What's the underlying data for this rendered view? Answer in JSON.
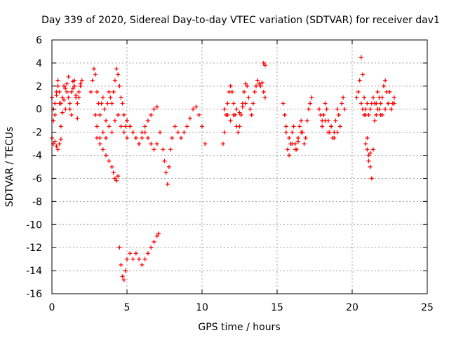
{
  "chart_data": {
    "type": "scatter",
    "title": "Day 339 of 2020, Sidereal Day-to-day VTEC variation (SDTVAR) for receiver dav1",
    "xlabel": "GPS time / hours",
    "ylabel": "SDTVAR / TECUs",
    "xlim": [
      0,
      25
    ],
    "ylim": [
      -16,
      6
    ],
    "xticks": [
      "0",
      "5",
      "10",
      "15",
      "20",
      "25"
    ],
    "yticks": [
      "6",
      "4",
      "2",
      "0",
      "-2",
      "-4",
      "-6",
      "-8",
      "-10",
      "-12",
      "-14",
      "-16"
    ],
    "grid": true,
    "marker": "+",
    "color": "#ff0000",
    "series": [
      {
        "name": "dav1",
        "x": [
          0.0,
          0.1,
          0.2,
          0.3,
          0.4,
          0.5,
          0.6,
          0.7,
          0.8,
          0.9,
          1.0,
          1.1,
          1.2,
          1.3,
          1.4,
          1.5,
          1.6,
          1.7,
          1.8,
          1.9,
          2.0,
          0.1,
          0.2,
          0.3,
          0.4,
          0.5,
          0.6,
          0.7,
          0.8,
          0.9,
          1.0,
          1.1,
          1.2,
          1.3,
          1.4,
          1.5,
          1.6,
          1.7,
          1.8,
          1.9,
          0.0,
          0.1,
          0.2,
          0.3,
          0.4,
          0.5,
          0.6,
          2.6,
          2.7,
          2.8,
          2.9,
          3.0,
          3.1,
          3.2,
          3.3,
          3.4,
          3.5,
          3.6,
          3.7,
          3.8,
          3.9,
          4.0,
          4.1,
          4.2,
          4.3,
          4.4,
          4.5,
          4.6,
          4.7,
          4.8,
          4.9,
          5.0,
          2.9,
          3.0,
          3.2,
          3.4,
          3.6,
          3.8,
          4.0,
          4.1,
          4.2,
          4.3,
          4.4,
          3.0,
          3.2,
          3.4,
          3.6,
          3.8,
          4.0,
          4.2,
          4.4,
          4.6,
          4.8,
          5.0,
          5.2,
          5.4,
          5.6,
          5.8,
          6.0,
          6.2,
          6.4,
          6.6,
          6.8,
          7.0,
          5.0,
          5.2,
          5.4,
          5.6,
          5.8,
          6.0,
          6.2,
          6.4,
          6.6,
          6.8,
          7.0,
          7.2,
          7.4,
          7.5,
          7.6,
          7.7,
          7.8,
          7.9,
          8.0,
          8.2,
          8.4,
          8.6,
          8.8,
          9.0,
          9.2,
          9.4,
          9.6,
          9.8,
          10.0,
          10.2,
          4.5,
          4.6,
          4.7,
          4.8,
          4.9,
          5.0,
          5.2,
          5.4,
          5.6,
          5.8,
          6.0,
          6.2,
          6.4,
          6.6,
          6.8,
          7.0,
          7.1,
          11.4,
          11.5,
          11.6,
          11.7,
          11.8,
          11.9,
          12.0,
          12.1,
          12.2,
          12.3,
          12.4,
          12.5,
          12.6,
          12.7,
          12.8,
          12.9,
          13.0,
          13.1,
          13.2,
          13.3,
          13.4,
          13.5,
          13.6,
          13.7,
          13.8,
          13.9,
          14.0,
          11.5,
          11.7,
          11.9,
          12.1,
          12.3,
          12.5,
          12.7,
          12.9,
          14.1,
          14.2,
          14.1,
          14.2,
          15.4,
          15.5,
          15.6,
          15.7,
          15.8,
          15.9,
          16.0,
          16.1,
          16.2,
          16.3,
          16.4,
          16.5,
          16.6,
          16.7,
          16.8,
          16.9,
          17.0,
          17.1,
          17.2,
          17.3,
          15.6,
          15.8,
          16.0,
          16.2,
          16.4,
          16.6,
          17.8,
          17.9,
          18.0,
          18.1,
          18.2,
          18.3,
          18.4,
          18.5,
          18.6,
          18.7,
          18.8,
          18.9,
          19.0,
          19.1,
          19.2,
          19.3,
          19.4,
          19.5,
          18.0,
          18.2,
          18.4,
          18.6,
          18.8,
          19.0,
          20.3,
          20.4,
          20.5,
          20.6,
          20.7,
          20.8,
          20.9,
          21.0,
          21.1,
          21.2,
          21.3,
          21.4,
          21.5,
          21.6,
          21.7,
          21.8,
          21.9,
          22.0,
          22.1,
          22.2,
          22.3,
          22.4,
          22.5,
          22.6,
          22.7,
          22.8,
          20.6,
          20.7,
          20.8,
          20.9,
          21.0,
          21.1,
          21.2,
          21.3,
          21.4,
          21.5,
          21.6,
          21.7,
          21.8,
          21.9,
          22.0,
          22.2,
          22.4,
          22.6,
          22.8,
          20.9,
          21.0,
          21.1,
          21.2
        ],
        "y": [
          1.0,
          0.0,
          -0.5,
          1.2,
          2.0,
          1.5,
          0.5,
          -0.3,
          0.8,
          1.8,
          2.2,
          1.0,
          0.0,
          1.5,
          2.4,
          2.0,
          1.2,
          0.5,
          1.0,
          2.0,
          2.5,
          -1.0,
          0.5,
          1.5,
          2.5,
          0.5,
          -1.5,
          1.0,
          2.0,
          0.0,
          1.5,
          2.8,
          0.5,
          -0.5,
          1.8,
          2.5,
          1.0,
          -0.8,
          1.5,
          2.2,
          -2.5,
          -3.0,
          -2.8,
          -3.2,
          -3.5,
          -3.0,
          -2.6,
          1.5,
          2.5,
          3.5,
          3.0,
          1.5,
          0.5,
          -0.5,
          0.5,
          1.0,
          0.0,
          -1.0,
          0.5,
          1.5,
          1.0,
          0.5,
          1.5,
          2.5,
          3.5,
          3.0,
          2.0,
          1.0,
          0.5,
          -0.5,
          -1.5,
          -2.5,
          -0.5,
          -1.5,
          -2.5,
          -3.5,
          -4.0,
          -4.5,
          -5.0,
          -5.5,
          -6.0,
          -6.2,
          -5.8,
          -2.5,
          -3.0,
          -2.0,
          -2.5,
          -1.5,
          -2.0,
          -1.0,
          -0.5,
          -1.5,
          -2.0,
          -1.0,
          -1.5,
          -2.0,
          -2.5,
          -3.0,
          -2.5,
          -2.0,
          -2.5,
          -3.0,
          -3.5,
          -3.0,
          -1.0,
          -1.5,
          -2.0,
          -2.5,
          -3.0,
          -2.0,
          -1.5,
          -1.0,
          -0.5,
          0.0,
          0.2,
          -2.0,
          -3.5,
          -4.5,
          -5.5,
          -6.5,
          -5.0,
          -3.5,
          -2.5,
          -1.5,
          -2.0,
          -2.5,
          -2.0,
          -1.5,
          -0.8,
          0.0,
          0.2,
          -0.5,
          -1.5,
          -3.0,
          -12.0,
          -13.5,
          -14.5,
          -14.8,
          -14.0,
          -13.0,
          -12.5,
          -13.0,
          -12.5,
          -13.0,
          -13.5,
          -13.0,
          -12.5,
          -12.0,
          -11.5,
          -11.0,
          -10.8,
          -3.0,
          -2.0,
          -0.5,
          0.5,
          1.5,
          2.0,
          1.5,
          0.5,
          -0.5,
          -1.5,
          -2.0,
          -1.5,
          -0.5,
          0.5,
          1.5,
          2.2,
          2.0,
          1.0,
          0.0,
          -0.5,
          0.5,
          1.5,
          2.0,
          2.5,
          2.2,
          2.0,
          2.3,
          0.0,
          -0.5,
          -1.0,
          -0.5,
          0.0,
          -0.3,
          0.2,
          0.5,
          4.0,
          3.8,
          1.5,
          1.0,
          0.5,
          -0.5,
          -1.5,
          -3.5,
          -4.0,
          -3.0,
          -2.0,
          -1.5,
          -3.0,
          -3.5,
          -2.5,
          -1.5,
          -1.0,
          -2.0,
          -3.0,
          -2.5,
          -1.0,
          0.0,
          0.5,
          1.0,
          -2.0,
          -2.5,
          -3.0,
          -3.5,
          -2.8,
          -2.0,
          0.0,
          -0.5,
          -1.0,
          -0.5,
          0.5,
          0.0,
          -1.0,
          -2.0,
          -1.5,
          -2.5,
          -2.0,
          -1.0,
          0.0,
          -0.5,
          -1.5,
          0.5,
          1.0,
          0.0,
          -1.5,
          -1.0,
          -2.0,
          -1.5,
          -2.5,
          -2.0,
          1.0,
          1.5,
          2.5,
          4.5,
          3.0,
          1.0,
          -0.5,
          -2.5,
          -4.0,
          -5.0,
          -6.0,
          -3.5,
          -1.0,
          0.5,
          1.5,
          0.0,
          -0.5,
          1.0,
          2.0,
          2.5,
          1.5,
          0.5,
          1.5,
          0.0,
          0.5,
          1.0,
          0.5,
          0.0,
          -0.5,
          0.0,
          0.5,
          -0.5,
          0.0,
          0.5,
          1.0,
          0.5,
          -0.5,
          0.0,
          1.0,
          0.5,
          -0.5,
          0.0,
          0.5,
          0.0,
          0.5,
          -3.0,
          -3.5,
          -4.5,
          -3.8
        ]
      }
    ]
  }
}
